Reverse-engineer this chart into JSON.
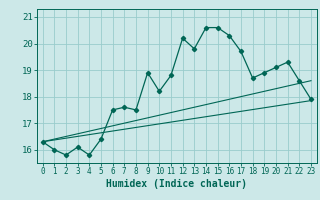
{
  "xlabel": "Humidex (Indice chaleur)",
  "bg_color": "#cce8e8",
  "grid_color": "#99cccc",
  "line_color": "#006655",
  "xlim": [
    -0.5,
    23.5
  ],
  "ylim": [
    15.5,
    21.3
  ],
  "yticks": [
    16,
    17,
    18,
    19,
    20,
    21
  ],
  "xticks": [
    0,
    1,
    2,
    3,
    4,
    5,
    6,
    7,
    8,
    9,
    10,
    11,
    12,
    13,
    14,
    15,
    16,
    17,
    18,
    19,
    20,
    21,
    22,
    23
  ],
  "main_data_x": [
    0,
    1,
    2,
    3,
    4,
    5,
    6,
    7,
    8,
    9,
    10,
    11,
    12,
    13,
    14,
    15,
    16,
    17,
    18,
    19,
    20,
    21,
    22,
    23
  ],
  "main_data_y": [
    16.3,
    16.0,
    15.8,
    16.1,
    15.8,
    16.4,
    17.5,
    17.6,
    17.5,
    18.9,
    18.2,
    18.8,
    20.2,
    19.8,
    20.6,
    20.6,
    20.3,
    19.7,
    18.7,
    18.9,
    19.1,
    19.3,
    18.6,
    17.9
  ],
  "trend1_x": [
    0,
    23
  ],
  "trend1_y": [
    16.3,
    17.85
  ],
  "trend2_x": [
    0,
    23
  ],
  "trend2_y": [
    16.3,
    18.6
  ]
}
